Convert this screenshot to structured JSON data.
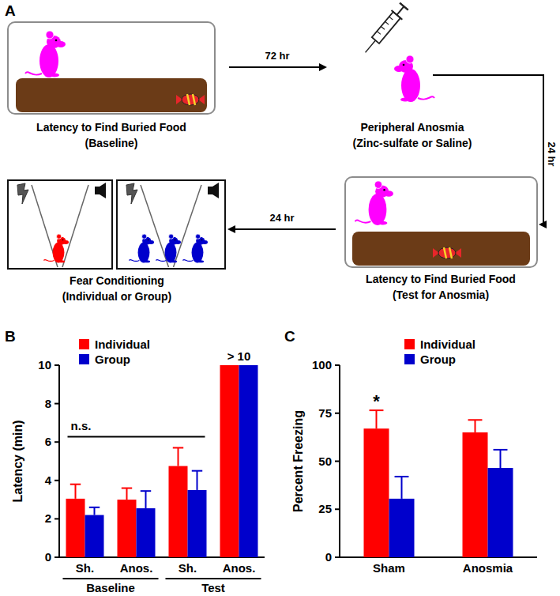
{
  "diagram": {
    "panel_label": "A",
    "steps": [
      {
        "label": "Latency to Find Buried Food",
        "sublabel": "(Baseline)"
      },
      {
        "label": "Peripheral Anosmia",
        "sublabel": "(Zinc-sulfate or Saline)"
      },
      {
        "label": "Latency to Find Buried Food",
        "sublabel": "(Test for Anosmia)"
      },
      {
        "label": "Fear Conditioning",
        "sublabel": "(Individual or Group)"
      }
    ],
    "intervals": [
      "72 hr",
      "24 hr",
      "24 hr"
    ]
  },
  "chart_data": [
    {
      "type": "bar",
      "title": "B",
      "y_label": "Latency (min)",
      "categories": [
        "Sh.",
        "Anos.",
        "Sh.",
        "Anos."
      ],
      "category_groups": [
        "Baseline",
        "Test"
      ],
      "series": [
        {
          "name": "Individual",
          "color": "#ff0000",
          "values": [
            3.05,
            3.0,
            4.75,
            10
          ],
          "errors": [
            0.75,
            0.6,
            0.95,
            null
          ]
        },
        {
          "name": "Group",
          "color": "#0000cc",
          "values": [
            2.2,
            2.55,
            3.5,
            10
          ],
          "errors": [
            0.4,
            0.9,
            1.0,
            null
          ]
        }
      ],
      "ylim": [
        0,
        10
      ],
      "yticks": [
        0,
        2,
        4,
        6,
        8,
        10
      ],
      "legend": "top",
      "annotations": [
        "n.s.",
        "> 10"
      ]
    },
    {
      "type": "bar",
      "title": "C",
      "y_label": "Percent Freezing",
      "categories": [
        "Sham",
        "Anosmia"
      ],
      "series": [
        {
          "name": "Individual",
          "color": "#ff0000",
          "values": [
            67,
            65
          ],
          "errors": [
            9.5,
            6.5
          ]
        },
        {
          "name": "Group",
          "color": "#0000cc",
          "values": [
            30.5,
            46.5
          ],
          "errors": [
            11.5,
            9.5
          ]
        }
      ],
      "ylim": [
        0,
        100
      ],
      "yticks": [
        0,
        25,
        50,
        75,
        100
      ],
      "legend": "top",
      "annotations": [
        "*"
      ]
    }
  ]
}
